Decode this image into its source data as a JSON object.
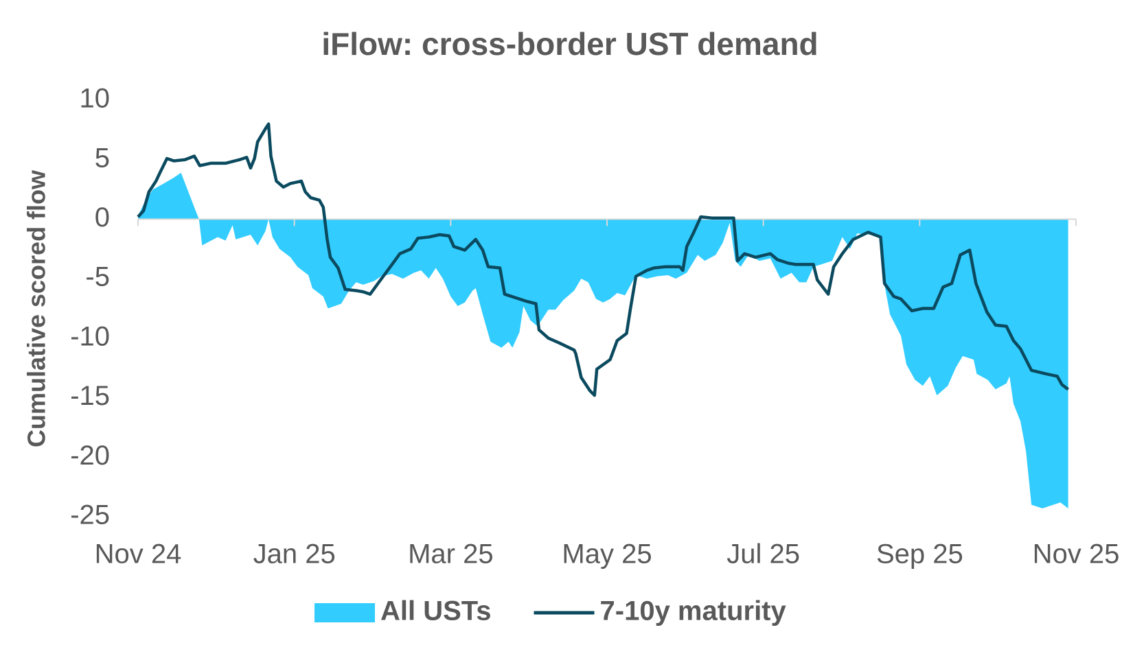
{
  "chart_data": {
    "type": "line",
    "title": "iFlow: cross-border UST demand",
    "y_label": "Cumulative scored flow",
    "xlim": [
      0,
      12
    ],
    "xticks": [
      {
        "value": 0,
        "label": "Nov 24"
      },
      {
        "value": 2,
        "label": "Jan 25"
      },
      {
        "value": 4,
        "label": "Mar 25"
      },
      {
        "value": 6,
        "label": "May 25"
      },
      {
        "value": 8,
        "label": "Jul 25"
      },
      {
        "value": 10,
        "label": "Sep 25"
      },
      {
        "value": 12,
        "label": "Nov 25"
      }
    ],
    "ylim": [
      -25,
      10
    ],
    "yticks": [
      -25,
      -20,
      -15,
      -10,
      -5,
      0,
      5,
      10
    ],
    "legend": "bottom",
    "series": [
      {
        "name": "All USTs",
        "kind": "area",
        "color": "#33ccff",
        "x": [
          0,
          0.09,
          0.19,
          0.33,
          0.46,
          0.55,
          0.65,
          0.72,
          0.78,
          0.82,
          1.02,
          1.12,
          1.21,
          1.25,
          1.44,
          1.53,
          1.63,
          1.67,
          1.72,
          1.81,
          1.95,
          2.04,
          2.18,
          2.23,
          2.37,
          2.43,
          2.6,
          2.7,
          2.79,
          2.88,
          3.02,
          3.11,
          3.25,
          3.39,
          3.53,
          3.62,
          3.72,
          3.81,
          3.9,
          4.0,
          4.09,
          4.18,
          4.28,
          4.32,
          4.41,
          4.51,
          4.65,
          4.74,
          4.79,
          4.88,
          4.93,
          5.02,
          5.11,
          5.25,
          5.34,
          5.44,
          5.58,
          5.67,
          5.76,
          5.86,
          5.95,
          6.04,
          6.13,
          6.23,
          6.37,
          6.51,
          6.64,
          6.78,
          6.88,
          7.02,
          7.16,
          7.25,
          7.39,
          7.48,
          7.57,
          7.64,
          7.71,
          7.81,
          7.95,
          8.09,
          8.22,
          8.36,
          8.46,
          8.55,
          8.64,
          8.74,
          8.88,
          9.01,
          9.11,
          9.2,
          9.39,
          9.48,
          9.55,
          9.62,
          9.76,
          9.83,
          9.94,
          10.04,
          10.13,
          10.22,
          10.36,
          10.46,
          10.55,
          10.69,
          10.73,
          10.87,
          10.97,
          11.11,
          11.15,
          11.2,
          11.29,
          11.36,
          11.43,
          11.57,
          11.71,
          11.8,
          11.9
        ],
        "values": [
          0.3,
          1.5,
          2.5,
          3.0,
          3.5,
          3.9,
          2.2,
          1.0,
          0,
          -2.2,
          -1.5,
          -1.8,
          -0.5,
          -1.7,
          -1.3,
          -2.2,
          -1.0,
          0,
          -1.5,
          -2.5,
          -3.2,
          -4.0,
          -4.7,
          -5.8,
          -6.5,
          -7.5,
          -7.1,
          -6.0,
          -5.3,
          -5.5,
          -5.2,
          -4.8,
          -4.6,
          -5.0,
          -4.5,
          -4.3,
          -5.0,
          -4.1,
          -5.0,
          -6.5,
          -7.3,
          -7.0,
          -6.0,
          -5.8,
          -8.0,
          -10.3,
          -10.8,
          -10.3,
          -10.8,
          -9.5,
          -7.3,
          -8.5,
          -9.0,
          -7.6,
          -7.6,
          -6.8,
          -6.0,
          -5.0,
          -5.3,
          -6.7,
          -7.0,
          -6.7,
          -6.2,
          -6.4,
          -4.7,
          -5.0,
          -4.8,
          -4.7,
          -5.0,
          -4.5,
          -3.0,
          -3.5,
          -3.0,
          -2.0,
          -0.3,
          -3.5,
          -4.0,
          -3.0,
          -3.5,
          -3.3,
          -5.0,
          -4.5,
          -5.3,
          -5.3,
          -4.0,
          -3.8,
          -3.5,
          -1.5,
          -2.5,
          -1.2,
          -1.3,
          -1.5,
          -5.5,
          -8.0,
          -9.8,
          -12.2,
          -13.5,
          -14.0,
          -13.2,
          -14.8,
          -14.0,
          -12.5,
          -11.5,
          -11.8,
          -13.0,
          -13.5,
          -14.3,
          -13.8,
          -13.2,
          -15.5,
          -17.0,
          -19.5,
          -24.0,
          -24.3,
          -24.0,
          -23.8,
          -24.3
        ]
      },
      {
        "name": "7-10y maturity",
        "kind": "line",
        "color": "#0b4a5f",
        "x": [
          0,
          0.07,
          0.14,
          0.23,
          0.28,
          0.37,
          0.46,
          0.6,
          0.72,
          0.79,
          0.93,
          1.12,
          1.3,
          1.39,
          1.44,
          1.49,
          1.53,
          1.63,
          1.67,
          1.7,
          1.77,
          1.86,
          1.95,
          2.09,
          2.14,
          2.21,
          2.32,
          2.37,
          2.42,
          2.46,
          2.56,
          2.65,
          2.79,
          2.88,
          2.97,
          3.07,
          3.16,
          3.25,
          3.35,
          3.49,
          3.58,
          3.72,
          3.86,
          3.98,
          4.04,
          4.18,
          4.32,
          4.41,
          4.48,
          4.63,
          4.69,
          4.83,
          4.97,
          5.09,
          5.13,
          5.25,
          5.39,
          5.58,
          5.6,
          5.67,
          5.78,
          5.84,
          5.87,
          6.04,
          6.13,
          6.25,
          6.3,
          6.37,
          6.51,
          6.6,
          6.74,
          6.93,
          6.97,
          7.02,
          7.11,
          7.2,
          7.34,
          7.62,
          7.67,
          7.76,
          7.9,
          8.09,
          8.18,
          8.32,
          8.41,
          8.64,
          8.69,
          8.83,
          8.9,
          9.01,
          9.15,
          9.34,
          9.5,
          9.55,
          9.67,
          9.76,
          9.9,
          10.04,
          10.18,
          10.3,
          10.41,
          10.52,
          10.64,
          10.72,
          10.86,
          10.97,
          11.11,
          11.2,
          11.29,
          11.43,
          11.62,
          11.76,
          11.82,
          11.9
        ],
        "values": [
          0.2,
          0.7,
          2.3,
          3.2,
          3.9,
          5.1,
          4.9,
          5.0,
          5.3,
          4.5,
          4.7,
          4.7,
          5.0,
          5.2,
          4.3,
          5.1,
          6.5,
          7.6,
          8.0,
          5.3,
          3.2,
          2.7,
          3.0,
          3.2,
          2.3,
          1.8,
          1.6,
          1.0,
          -1.7,
          -3.2,
          -4.1,
          -5.9,
          -6.0,
          -6.1,
          -6.3,
          -5.4,
          -4.6,
          -3.8,
          -2.9,
          -2.5,
          -1.6,
          -1.5,
          -1.3,
          -1.4,
          -2.3,
          -2.6,
          -1.7,
          -2.6,
          -4.0,
          -4.1,
          -6.3,
          -6.6,
          -6.9,
          -7.1,
          -9.3,
          -10.0,
          -10.4,
          -11.0,
          -11.3,
          -13.3,
          -14.4,
          -14.8,
          -12.6,
          -11.8,
          -10.2,
          -9.6,
          -7.5,
          -4.8,
          -4.3,
          -4.1,
          -4.0,
          -4.0,
          -4.3,
          -2.3,
          -1.1,
          0.2,
          0.1,
          0.1,
          -3.5,
          -2.9,
          -3.2,
          -2.9,
          -3.4,
          -3.7,
          -3.8,
          -3.8,
          -5.1,
          -6.3,
          -4.0,
          -2.9,
          -1.7,
          -1.1,
          -1.5,
          -5.4,
          -6.5,
          -6.7,
          -7.7,
          -7.5,
          -7.5,
          -5.7,
          -5.4,
          -3.0,
          -2.6,
          -5.4,
          -7.8,
          -8.9,
          -9.0,
          -10.2,
          -10.9,
          -12.7,
          -13.0,
          -13.2,
          -13.9,
          -14.3
        ]
      }
    ]
  }
}
